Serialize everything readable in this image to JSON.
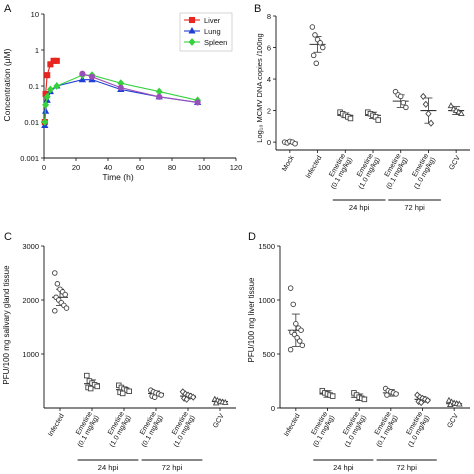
{
  "chart_data": [
    {
      "panel": "A",
      "type": "line",
      "xlabel": "Time (h)",
      "ylabel": "Concentration (μM)",
      "xlim": [
        0,
        120
      ],
      "ylim": [
        0.001,
        10
      ],
      "yscale": "log",
      "xticks": [
        0,
        20,
        40,
        60,
        80,
        100,
        120
      ],
      "yticks": [
        0.001,
        0.01,
        0.1,
        1,
        10
      ],
      "ytick_labels": [
        "0.001",
        "0.01",
        "0.1",
        "1",
        "10"
      ],
      "legend_position": "top-right",
      "series": [
        {
          "name": "Liver",
          "color": "#e8251f",
          "marker": "square",
          "x": [
            0.5,
            1,
            2,
            4,
            6,
            8
          ],
          "y": [
            0.01,
            0.06,
            0.2,
            0.4,
            0.5,
            0.5
          ]
        },
        {
          "name": "Lung",
          "color": "#1f3fd6",
          "marker": "triangle",
          "x": [
            0.5,
            1,
            2,
            4,
            8,
            24,
            30,
            48,
            72,
            96
          ],
          "y": [
            0.008,
            0.02,
            0.04,
            0.07,
            0.1,
            0.15,
            0.15,
            0.08,
            0.05,
            0.035
          ]
        },
        {
          "name": "Spleen",
          "color": "#35d23c",
          "marker": "diamond",
          "x": [
            0.5,
            1,
            2,
            4,
            8,
            24,
            30,
            48,
            72,
            96
          ],
          "y": [
            0.01,
            0.03,
            0.05,
            0.08,
            0.1,
            0.2,
            0.2,
            0.12,
            0.07,
            0.04
          ]
        },
        {
          "name": "",
          "color": "#9a4fb8",
          "marker": "circle",
          "x": [
            24,
            30,
            48,
            72,
            96
          ],
          "y": [
            0.22,
            0.18,
            0.09,
            0.05,
            0.035
          ]
        }
      ]
    },
    {
      "panel": "B",
      "type": "scatter",
      "ylabel": "Log₁₀ MCMV DNA copies /100ng",
      "ylim": [
        -0.5,
        8
      ],
      "yticks": [
        0,
        2,
        4,
        6,
        8
      ],
      "ytick_labels": [
        "0",
        "2",
        "4",
        "6",
        "8"
      ],
      "categories": [
        "Mock",
        "Infected",
        "Emetine\n(0.1 mg/kg)",
        "Emetine\n(1.0 mg/kg)",
        "Emetine\n(0.1 mg/kg)",
        "Emetine\n(1.0 mg/kg)",
        "GCV"
      ],
      "markers": [
        "circle",
        "circle",
        "square",
        "square",
        "circle",
        "diamond",
        "triangle"
      ],
      "means": [
        0.0,
        6.2,
        1.7,
        1.7,
        2.6,
        2.0,
        2.0
      ],
      "sd": [
        0.1,
        0.5,
        0.15,
        0.2,
        0.4,
        0.8,
        0.25
      ],
      "points": [
        [
          0.0,
          -0.05,
          0.05,
          0.0,
          -0.1
        ],
        [
          7.3,
          6.8,
          6.5,
          6.3,
          6.0,
          5.5,
          5.0
        ],
        [
          1.9,
          1.8,
          1.7,
          1.6,
          1.5
        ],
        [
          1.9,
          1.8,
          1.7,
          1.6,
          1.4
        ],
        [
          3.2,
          3.0,
          2.9,
          2.5,
          2.2
        ],
        [
          2.9,
          2.4,
          1.8,
          1.2
        ],
        [
          2.3,
          2.1,
          2.0,
          1.9,
          1.8
        ]
      ],
      "groups": [
        {
          "label": "24 hpi",
          "from": 2,
          "to": 3
        },
        {
          "label": "72 hpi",
          "from": 4,
          "to": 5
        }
      ]
    },
    {
      "panel": "C",
      "type": "scatter",
      "ylabel": "PFU/100 mg salivary gland tissue",
      "ylim": [
        0,
        3000
      ],
      "yticks": [
        1000,
        2000,
        3000
      ],
      "ytick_labels": [
        "1000",
        "2000",
        "3000"
      ],
      "categories": [
        "Infected",
        "Emetine\n(0.1 mg/kg)",
        "Emetine\n(1.0 mg/kg)",
        "Emetine\n(0.1 mg/kg)",
        "Emetine\n(1.0 mg/kg)",
        "GCV"
      ],
      "markers": [
        "circle",
        "square",
        "square",
        "circle",
        "diamond",
        "triangle"
      ],
      "means": [
        2050,
        450,
        340,
        270,
        220,
        120
      ],
      "sd": [
        150,
        70,
        45,
        45,
        45,
        25
      ],
      "points": [
        [
          2500,
          2300,
          2200,
          2150,
          2100,
          2050,
          2000,
          1950,
          1900,
          1850,
          1800
        ],
        [
          600,
          500,
          460,
          430,
          400,
          380,
          360
        ],
        [
          420,
          380,
          350,
          330,
          310,
          290,
          270
        ],
        [
          330,
          300,
          280,
          260,
          240,
          220,
          200
        ],
        [
          300,
          260,
          240,
          220,
          200,
          180,
          160
        ],
        [
          160,
          140,
          120,
          110,
          100,
          90
        ]
      ],
      "groups": [
        {
          "label": "24 hpi",
          "from": 1,
          "to": 2
        },
        {
          "label": "72 hpi",
          "from": 3,
          "to": 4
        }
      ]
    },
    {
      "panel": "D",
      "type": "scatter",
      "ylabel": "PFU/100 mg liver tissue",
      "ylim": [
        0,
        1500
      ],
      "yticks": [
        0,
        500,
        1000,
        1500
      ],
      "ytick_labels": [
        "0",
        "500",
        "1000",
        "1500"
      ],
      "categories": [
        "Infected",
        "Emetine\n(0.1 mg/kg)",
        "Emetine\n(1.0 mg/kg)",
        "Emetine\n(0.1 mg/kg)",
        "Emetine\n(1.0 mg/kg)",
        "GCV"
      ],
      "markers": [
        "circle",
        "square",
        "square",
        "circle",
        "diamond",
        "triangle"
      ],
      "means": [
        720,
        130,
        100,
        140,
        80,
        40
      ],
      "sd": [
        150,
        30,
        30,
        30,
        25,
        15
      ],
      "points": [
        [
          1110,
          960,
          780,
          740,
          720,
          700,
          680,
          650,
          620,
          580,
          540
        ],
        [
          160,
          140,
          130,
          120,
          110
        ],
        [
          140,
          120,
          100,
          90,
          80
        ],
        [
          180,
          160,
          150,
          140,
          130,
          120
        ],
        [
          120,
          100,
          90,
          80,
          70,
          60,
          50
        ],
        [
          70,
          55,
          45,
          40,
          35,
          30
        ]
      ],
      "groups": [
        {
          "label": "24 hpi",
          "from": 1,
          "to": 2
        },
        {
          "label": "72 hpi",
          "from": 3,
          "to": 4
        }
      ]
    }
  ]
}
